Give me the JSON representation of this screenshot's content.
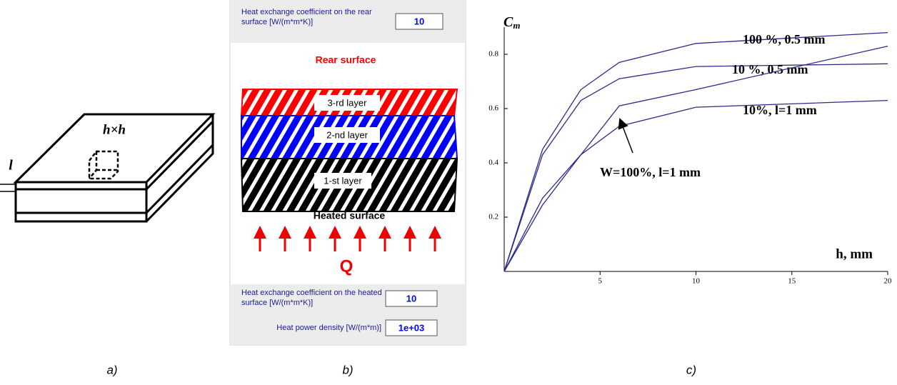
{
  "panel_a": {
    "area_label": "h×h",
    "thickness_label": "l"
  },
  "panel_b": {
    "rear_coeff_label": "Heat exchange coefficient on the rear surface [W/(m*m*K)]",
    "rear_coeff_value": "10",
    "rear_surface": "Rear surface",
    "layers": [
      "3-rd layer",
      "2-nd layer",
      "1-st layer"
    ],
    "heated_surface": "Heated surface",
    "source": "Q",
    "heated_coeff_label": "Heat exchange coefficient on the heated surface [W/(m*m*K)]",
    "heated_coeff_value": "10",
    "power_label": "Heat power density [W/(m*m)]",
    "power_value": "1e+03"
  },
  "chart_data": {
    "type": "line",
    "ylabel": "C",
    "ylabel_sub": "m",
    "xlabel": "h, mm",
    "x": [
      0,
      2,
      4,
      6,
      10,
      20
    ],
    "series": [
      {
        "name": "100 %, 0.5 mm",
        "color": "#2b2b8c",
        "values": [
          0,
          0.45,
          0.67,
          0.77,
          0.84,
          0.88
        ]
      },
      {
        "name": "10 %, 0.5 mm",
        "color": "#2b2b8c",
        "values": [
          0,
          0.43,
          0.63,
          0.71,
          0.755,
          0.765
        ]
      },
      {
        "name": "W=100%, l=1 mm",
        "color": "#2b2b8c",
        "values": [
          0,
          0.27,
          0.43,
          0.61,
          0.67,
          0.83
        ]
      },
      {
        "name": "10%, l=1 mm",
        "color": "#2b2b8c",
        "values": [
          0,
          0.245,
          0.43,
          0.535,
          0.605,
          0.63
        ]
      }
    ],
    "xlim": [
      0,
      20
    ],
    "ylim": [
      0,
      0.9
    ],
    "xticks": [
      5,
      10,
      15,
      20
    ],
    "yticks": [
      0.2,
      0.4,
      0.6,
      0.8
    ]
  },
  "captions": [
    "a)",
    "b)",
    "c)"
  ]
}
